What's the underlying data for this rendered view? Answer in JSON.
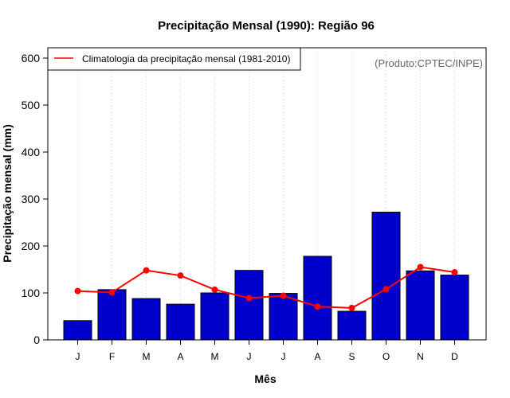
{
  "chart_data": {
    "type": "bar",
    "title": "Precipitação Mensal (1990): Região 96",
    "xlabel": "Mês",
    "ylabel": "Precipitação mensal (mm)",
    "categories": [
      "J",
      "F",
      "M",
      "A",
      "M",
      "J",
      "J",
      "A",
      "S",
      "O",
      "N",
      "D"
    ],
    "ylim": [
      0,
      600
    ],
    "yticks": [
      0,
      100,
      200,
      300,
      400,
      500,
      600
    ],
    "grid": "vertical dotted",
    "series": [
      {
        "name": "Precipitação mensal (1990)",
        "type": "bar",
        "color": "#0000CD",
        "values": [
          41,
          107,
          88,
          76,
          100,
          148,
          99,
          178,
          61,
          272,
          147,
          138
        ]
      },
      {
        "name": "Climatologia da precipitação mensal (1981-2010)",
        "type": "line",
        "color": "#FF0000",
        "values": [
          104,
          101,
          148,
          137,
          107,
          89,
          94,
          71,
          68,
          108,
          155,
          144
        ]
      }
    ],
    "legend": {
      "label": "Climatologia da precipitação mensal (1981-2010)",
      "placement": "top-left"
    },
    "annotation": "(Produto:CPTEC/INPE)"
  }
}
